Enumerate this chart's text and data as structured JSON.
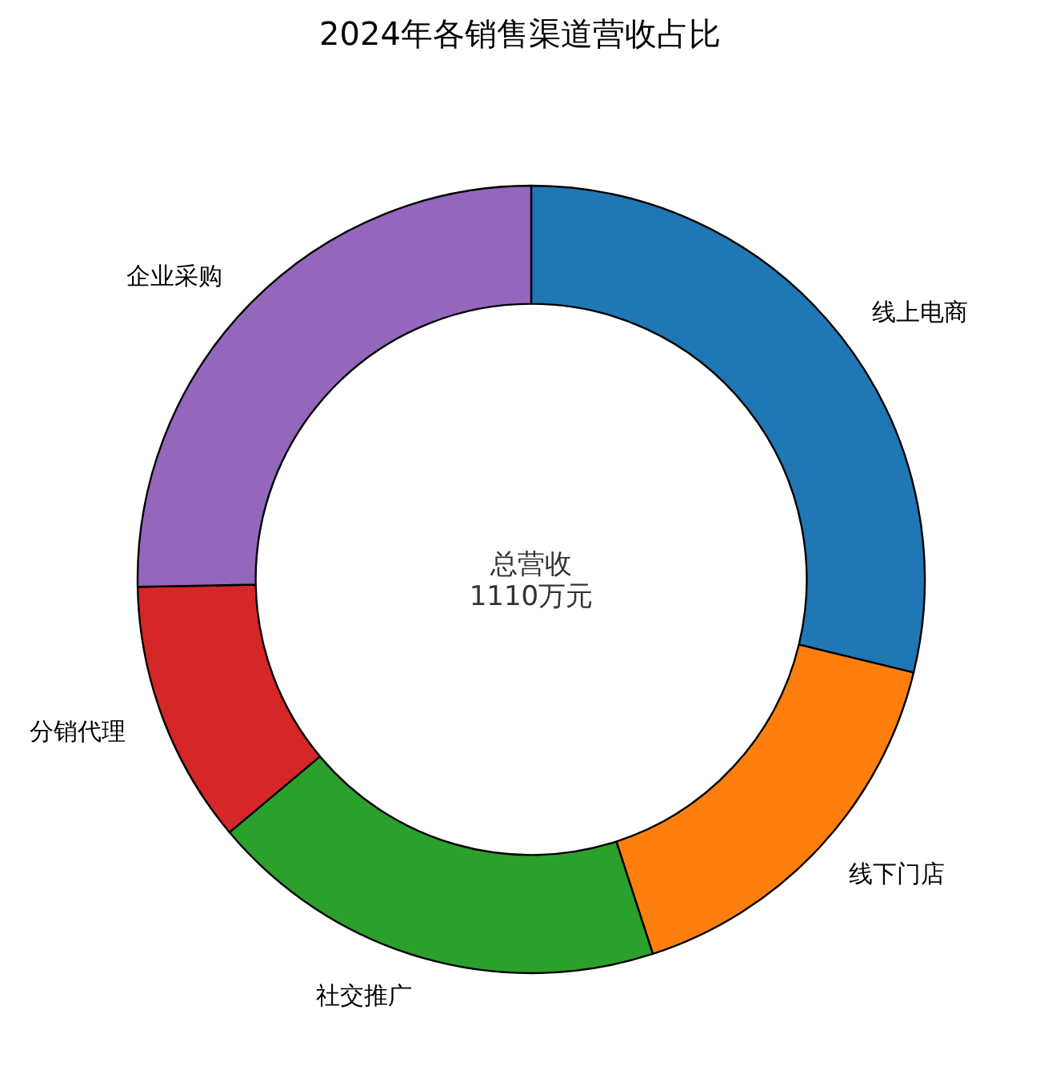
{
  "chart_data": {
    "type": "donut",
    "title": "2024年各销售渠道营收占比",
    "categories": [
      "线上电商",
      "线下门店",
      "社交推广",
      "分销代理",
      "企业采购"
    ],
    "values": [
      28.8,
      16.2,
      18.9,
      10.8,
      25.3
    ],
    "colors": [
      "#1f77b4",
      "#ff7f0e",
      "#2ca02c",
      "#d62728",
      "#9467bd"
    ],
    "annotations": [
      "总营收\n1110万元"
    ],
    "legend": false
  }
}
